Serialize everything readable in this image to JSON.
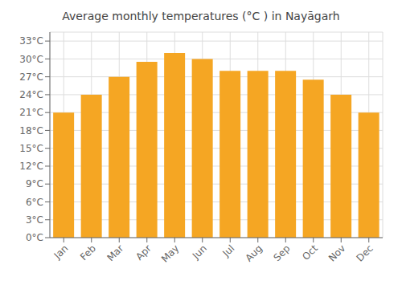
{
  "chart_data": {
    "type": "bar",
    "title": "Average monthly temperatures (°C ) in Nayāgarh",
    "categories": [
      "Jan",
      "Feb",
      "Mar",
      "Apr",
      "May",
      "Jun",
      "Jul",
      "Aug",
      "Sep",
      "Oct",
      "Nov",
      "Dec"
    ],
    "values": [
      21,
      24,
      27,
      29.5,
      31,
      30,
      28,
      28,
      28,
      26.5,
      24,
      21
    ],
    "color": "#F5A623",
    "ylim": [
      0,
      34.5
    ],
    "yticks": [
      {
        "value": 0,
        "label": "0°C"
      },
      {
        "value": 3,
        "label": "3°C"
      },
      {
        "value": 6,
        "label": "6°C"
      },
      {
        "value": 9,
        "label": "9°C"
      },
      {
        "value": 12,
        "label": "12°C"
      },
      {
        "value": 15,
        "label": "15°C"
      },
      {
        "value": 18,
        "label": "18°C"
      },
      {
        "value": 21,
        "label": "21°C"
      },
      {
        "value": 24,
        "label": "24°C"
      },
      {
        "value": 27,
        "label": "27°C"
      },
      {
        "value": 30,
        "label": "30°C"
      },
      {
        "value": 33,
        "label": "33°C"
      }
    ],
    "grid": true
  }
}
